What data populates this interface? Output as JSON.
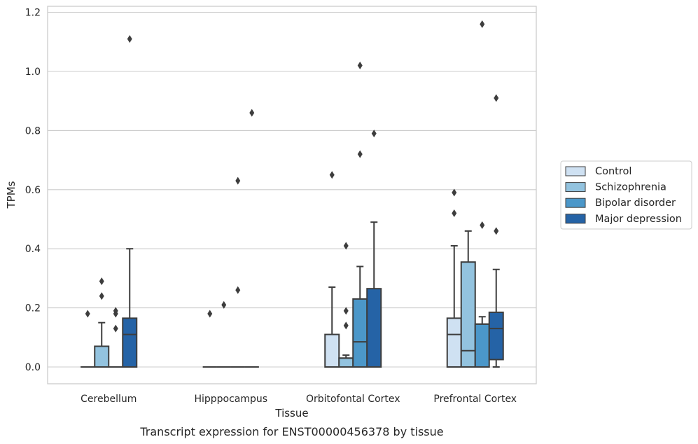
{
  "caption": "Transcript expression for ENST00000456378 by tissue",
  "chart_data": {
    "type": "boxplot",
    "xlabel": "Tissue",
    "ylabel": "TPMs",
    "ylim": [
      -0.055,
      1.22
    ],
    "yticks": [
      0.0,
      0.2,
      0.4,
      0.6,
      0.8,
      1.0,
      1.2
    ],
    "ytick_labels": [
      "0.0",
      "0.2",
      "0.4",
      "0.6",
      "0.8",
      "1.0",
      "1.2"
    ],
    "grid": "horizontal",
    "legend_position": "right",
    "categories": [
      "Cerebellum",
      "Hipppocampus",
      "Orbitofontal Cortex",
      "Prefrontal Cortex"
    ],
    "series": [
      {
        "name": "Control",
        "color": "#cfe1f2",
        "boxes": [
          {
            "q1": 0,
            "median": 0,
            "q3": 0,
            "whisker_low": 0,
            "whisker_high": 0,
            "outliers": [
              0.18
            ]
          },
          {
            "q1": 0,
            "median": 0,
            "q3": 0,
            "whisker_low": 0,
            "whisker_high": 0,
            "outliers": [
              0.18
            ]
          },
          {
            "q1": 0,
            "median": 0,
            "q3": 0.11,
            "whisker_low": 0,
            "whisker_high": 0.27,
            "outliers": [
              0.65
            ]
          },
          {
            "q1": 0,
            "median": 0.11,
            "q3": 0.165,
            "whisker_low": 0,
            "whisker_high": 0.41,
            "outliers": [
              0.52,
              0.59
            ]
          }
        ]
      },
      {
        "name": "Schizophrenia",
        "color": "#93c3df",
        "boxes": [
          {
            "q1": 0,
            "median": 0,
            "q3": 0.07,
            "whisker_low": 0,
            "whisker_high": 0.15,
            "outliers": [
              0.24,
              0.29
            ]
          },
          {
            "q1": 0,
            "median": 0,
            "q3": 0,
            "whisker_low": 0,
            "whisker_high": 0,
            "outliers": [
              0.21
            ]
          },
          {
            "q1": 0,
            "median": 0.03,
            "q3": 0.03,
            "whisker_low": 0,
            "whisker_high": 0.04,
            "outliers": [
              0.14,
              0.19,
              0.41
            ]
          },
          {
            "q1": 0,
            "median": 0.055,
            "q3": 0.355,
            "whisker_low": 0,
            "whisker_high": 0.46,
            "outliers": []
          }
        ]
      },
      {
        "name": "Bipolar disorder",
        "color": "#4b97c9",
        "boxes": [
          {
            "q1": 0,
            "median": 0,
            "q3": 0,
            "whisker_low": 0,
            "whisker_high": 0,
            "outliers": [
              0.13,
              0.18,
              0.19
            ]
          },
          {
            "q1": 0,
            "median": 0,
            "q3": 0,
            "whisker_low": 0,
            "whisker_high": 0,
            "outliers": [
              0.26,
              0.63
            ]
          },
          {
            "q1": 0,
            "median": 0.085,
            "q3": 0.23,
            "whisker_low": 0,
            "whisker_high": 0.34,
            "outliers": [
              0.72,
              1.02
            ]
          },
          {
            "q1": 0,
            "median": 0.145,
            "q3": 0.145,
            "whisker_low": 0,
            "whisker_high": 0.17,
            "outliers": [
              0.48,
              1.16
            ]
          }
        ]
      },
      {
        "name": "Major depression",
        "color": "#2563a6",
        "boxes": [
          {
            "q1": 0,
            "median": 0.11,
            "q3": 0.165,
            "whisker_low": 0,
            "whisker_high": 0.4,
            "outliers": [
              1.11
            ]
          },
          {
            "q1": 0,
            "median": 0,
            "q3": 0,
            "whisker_low": 0,
            "whisker_high": 0,
            "outliers": [
              0.86
            ]
          },
          {
            "q1": 0,
            "median": 0,
            "q3": 0.265,
            "whisker_low": 0,
            "whisker_high": 0.49,
            "outliers": [
              0.79
            ]
          },
          {
            "q1": 0.025,
            "median": 0.13,
            "q3": 0.185,
            "whisker_low": 0,
            "whisker_high": 0.33,
            "outliers": [
              0.46,
              0.91
            ]
          }
        ]
      }
    ]
  }
}
